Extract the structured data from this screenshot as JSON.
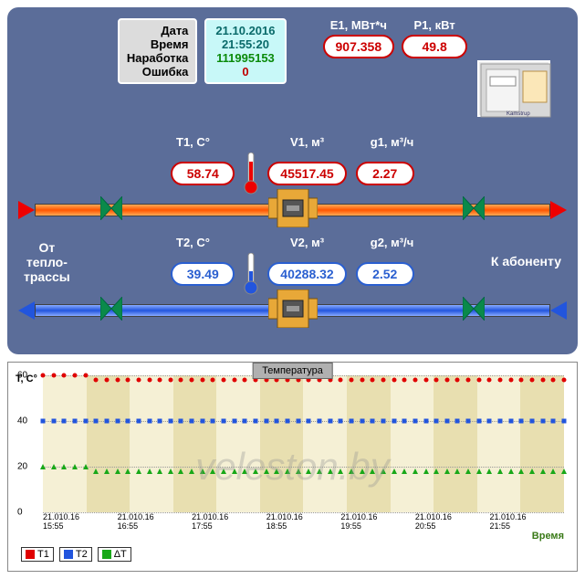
{
  "header": {
    "labels": {
      "date": "Дата",
      "time": "Время",
      "uptime": "Наработка",
      "error": "Ошибка"
    },
    "values": {
      "date": "21.10.2016",
      "time": "21:55:20",
      "uptime": "111995153",
      "error": "0"
    },
    "value_colors": {
      "date": "#0a6a6a",
      "time": "#0a6a6a",
      "uptime": "#0a8a0a",
      "error": "#c00000"
    },
    "e1_label": "E1, МВт*ч",
    "e1_value": "907.358",
    "p1_label": "P1, кВт",
    "p1_value": "49.8"
  },
  "supply": {
    "t_label": "T1, C°",
    "t_value": "58.74",
    "v_label": "V1, м³",
    "v_value": "45517.45",
    "g_label": "g1, м³/ч",
    "g_value": "2.27",
    "pill_color": "#c00000"
  },
  "return": {
    "t_label": "T2, C°",
    "t_value": "39.49",
    "v_label": "V2, м³",
    "v_value": "40288.32",
    "g_label": "g2, м³/ч",
    "g_value": "2.52",
    "pill_color": "#2a5fd0"
  },
  "side_labels": {
    "left": "От\nтепло-\nтрассы",
    "right": "К абоненту"
  },
  "chart": {
    "title": "Температура",
    "y_title": "T, C°",
    "x_title": "Время",
    "ylim": [
      0,
      60
    ],
    "y_ticks": [
      0,
      20,
      40,
      60
    ],
    "x_ticks": [
      "21.010.16\n15:55",
      "21.010.16\n16:55",
      "21.010.16\n17:55",
      "21.010.16\n18:55",
      "21.010.16\n19:55",
      "21.010.16\n20:55",
      "21.010.16\n21:55"
    ],
    "background_color": "#f5f0d5",
    "stripe_color": "#e8dfb0",
    "marker_size": 5,
    "series": [
      {
        "name": "T1",
        "color": "#e00000",
        "marker": "circle",
        "values": [
          60,
          60,
          60,
          60,
          60,
          58,
          58,
          58,
          58,
          58,
          58,
          58,
          58,
          58,
          58,
          58,
          58,
          58,
          58,
          58,
          58,
          58,
          58,
          58,
          58,
          58,
          58,
          58,
          58,
          58,
          58,
          58,
          58,
          58,
          58,
          58,
          58,
          58,
          58,
          58,
          58,
          58,
          58,
          58,
          58,
          58,
          58,
          58,
          58,
          58
        ]
      },
      {
        "name": "T2",
        "color": "#2255dd",
        "marker": "square",
        "values": [
          40,
          40,
          40,
          40,
          40,
          40,
          40,
          40,
          40,
          40,
          40,
          40,
          40,
          40,
          40,
          40,
          40,
          40,
          40,
          40,
          40,
          40,
          40,
          40,
          40,
          40,
          40,
          40,
          40,
          40,
          40,
          40,
          40,
          40,
          40,
          40,
          40,
          40,
          40,
          40,
          40,
          40,
          40,
          40,
          40,
          40,
          40,
          40,
          40,
          40
        ]
      },
      {
        "name": "ΔT",
        "color": "#18a818",
        "marker": "triangle",
        "values": [
          20,
          20,
          20,
          20,
          20,
          18,
          18,
          18,
          18,
          18,
          18,
          18,
          18,
          18,
          18,
          18,
          18,
          18,
          18,
          18,
          18,
          18,
          18,
          18,
          18,
          18,
          18,
          18,
          18,
          18,
          18,
          18,
          18,
          18,
          18,
          18,
          18,
          18,
          18,
          18,
          18,
          18,
          18,
          18,
          18,
          18,
          18,
          18,
          18,
          18
        ]
      }
    ],
    "legend": [
      {
        "label": "T1",
        "color": "#e00000"
      },
      {
        "label": "T2",
        "color": "#2255dd"
      },
      {
        "label": "ΔT",
        "color": "#18a818"
      }
    ]
  },
  "watermark": "veleston.by",
  "colors": {
    "panel_bg": "#5b6d99",
    "pipe_hot": "#ff5500",
    "pipe_cold": "#2255dd",
    "valve_fill": "#e8a838",
    "meter_fill": "#e8a838"
  }
}
